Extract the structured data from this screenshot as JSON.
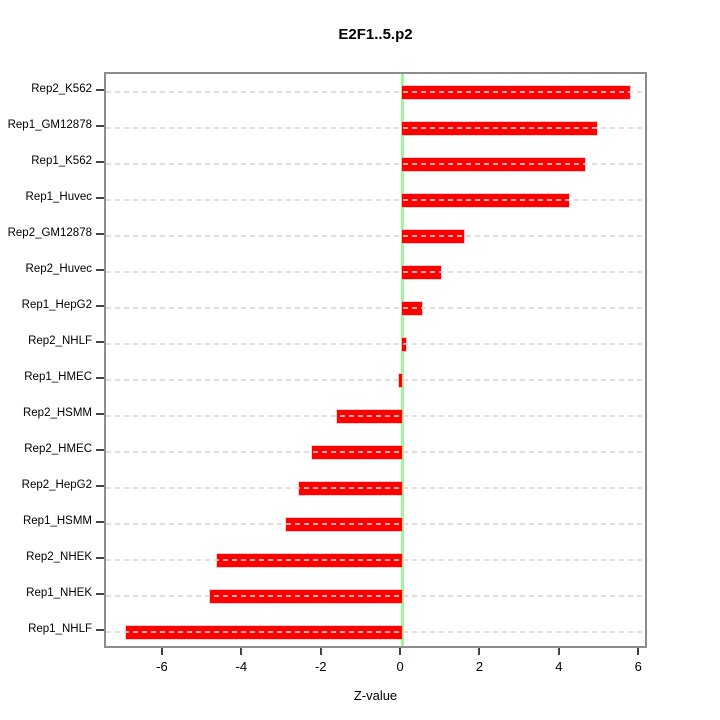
{
  "title": "E2F1..5.p2",
  "chart_data": {
    "type": "bar",
    "orientation": "horizontal",
    "title": "E2F1..5.p2",
    "xlabel": "Z-value",
    "ylabel": "",
    "categories": [
      "Rep2_K562",
      "Rep1_GM12878",
      "Rep1_K562",
      "Rep1_Huvec",
      "Rep2_GM12878",
      "Rep2_Huvec",
      "Rep1_HepG2",
      "Rep2_NHLF",
      "Rep1_HMEC",
      "Rep2_HSMM",
      "Rep2_HMEC",
      "Rep2_HepG2",
      "Rep1_HSMM",
      "Rep2_NHEK",
      "Rep1_NHEK",
      "Rep1_NHLF"
    ],
    "values": [
      5.74,
      4.9,
      4.62,
      4.21,
      1.57,
      0.99,
      0.5,
      0.09,
      -0.08,
      -1.63,
      -2.27,
      -2.59,
      -2.92,
      -4.66,
      -4.84,
      -6.96
    ],
    "xlim": [
      -7.46,
      6.22
    ],
    "xticks": [
      "-6",
      "-4",
      "-2",
      "0",
      "2",
      "4",
      "6"
    ],
    "xtick_values": [
      -6,
      -4,
      -2,
      0,
      2,
      4,
      6
    ],
    "grid": true,
    "legend": false,
    "bar_color": "#ff0000",
    "zero_line_color": "#98fb98",
    "box_color": "#8c8c8c"
  }
}
